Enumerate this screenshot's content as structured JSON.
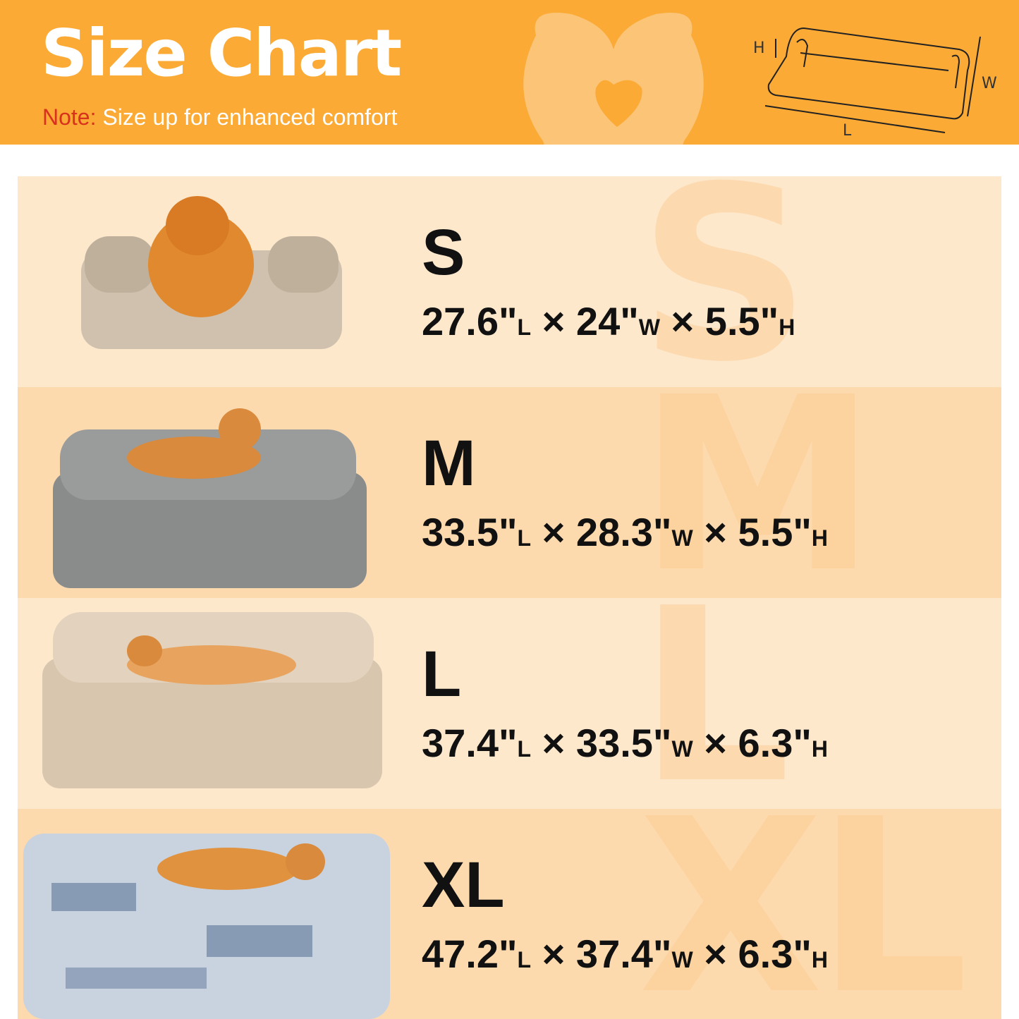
{
  "header": {
    "title": "Size Chart",
    "note_label": "Note:",
    "note_text": " Size up for enhanced comfort",
    "diagram_labels": {
      "h": "H",
      "w": "W",
      "l": "L"
    },
    "colors": {
      "header_bg": "#FBAA35",
      "note_label": "#D8321E"
    }
  },
  "sizes": [
    {
      "size": "S",
      "length": "27.6\"",
      "width": "24\"",
      "height": "5.5\"",
      "bed_color": "#CFC1AE",
      "dog": "pomeranian"
    },
    {
      "size": "M",
      "length": "33.5\"",
      "width": "28.3\"",
      "height": "5.5\"",
      "bed_color": "#8A8C8C",
      "dog": "shiba inu"
    },
    {
      "size": "L",
      "length": "37.4\"",
      "width": "33.5\"",
      "height": "6.3\"",
      "bed_color": "#D9C6AE",
      "dog": "shiba inu"
    },
    {
      "size": "XL",
      "length": "47.2\"",
      "width": "37.4\"",
      "height": "6.3\"",
      "bed_color": "#B9C6D6",
      "dog": "shiba inu"
    }
  ],
  "units": {
    "l": "L",
    "w": "W",
    "h": "H",
    "times": "×"
  }
}
